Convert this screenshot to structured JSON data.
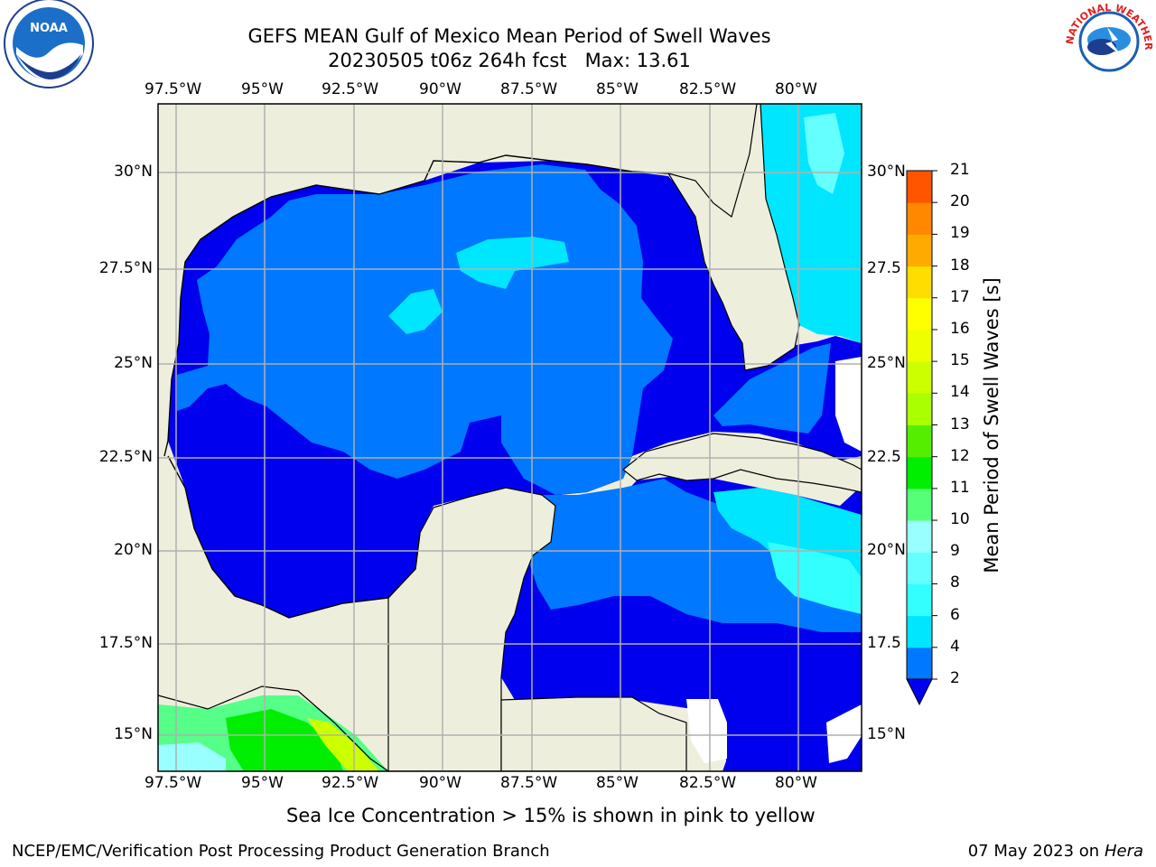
{
  "header": {
    "title_line1": "GEFS MEAN Gulf of Mexico Mean Period of Swell Waves",
    "title_line2": "20230505 t06z 264h fcst   Max: 13.61"
  },
  "logos": {
    "left": {
      "name": "noaa-logo",
      "text": "NOAA"
    },
    "right": {
      "name": "nws-logo",
      "text": "NATIONAL WEATHER SERVICE"
    }
  },
  "map": {
    "lon_labels": [
      "97.5°W",
      "95°W",
      "92.5°W",
      "90°W",
      "87.5°W",
      "85°W",
      "82.5°W",
      "80°W"
    ],
    "lat_labels_left": [
      "30°N",
      "27.5°N",
      "25°N",
      "22.5°N",
      "20°N",
      "17.5°N",
      "15°N"
    ],
    "lat_labels_right": [
      "30°N",
      "27.5",
      "25°N",
      "22.5",
      "20°N",
      "17.5",
      "15°N"
    ],
    "colors": {
      "land": "#eeeedd",
      "deep_blue": "#0000ee",
      "mid_blue": "#0078ff",
      "cyan": "#00ffff",
      "light_cyan": "#33ffff",
      "green_light": "#55ff88",
      "green": "#00ee00",
      "yellow_green": "#ccff00"
    }
  },
  "colorbar": {
    "label": "Mean Period of Swell Waves [s]",
    "ticks": [
      "2",
      "4",
      "6",
      "8",
      "9",
      "10",
      "11",
      "12",
      "13",
      "14",
      "15",
      "16",
      "17",
      "18",
      "19",
      "20",
      "21"
    ],
    "colors": [
      "#0078ff",
      "#00e6ff",
      "#33ffff",
      "#66ffff",
      "#99ffff",
      "#55ff77",
      "#00ee00",
      "#55ee00",
      "#aaff00",
      "#ccff00",
      "#eeff00",
      "#ffff00",
      "#ffdd00",
      "#ffaa00",
      "#ff8800",
      "#ff5500",
      "#ff2200",
      "#ff0000"
    ],
    "under_color": "#0000ee"
  },
  "footer": {
    "note": "Sea Ice Concentration > 15% is shown in pink to yellow",
    "org": "NCEP/EMC/Verification Post Processing Product Generation Branch",
    "date": "07 May 2023 on",
    "machine": "Hera"
  }
}
